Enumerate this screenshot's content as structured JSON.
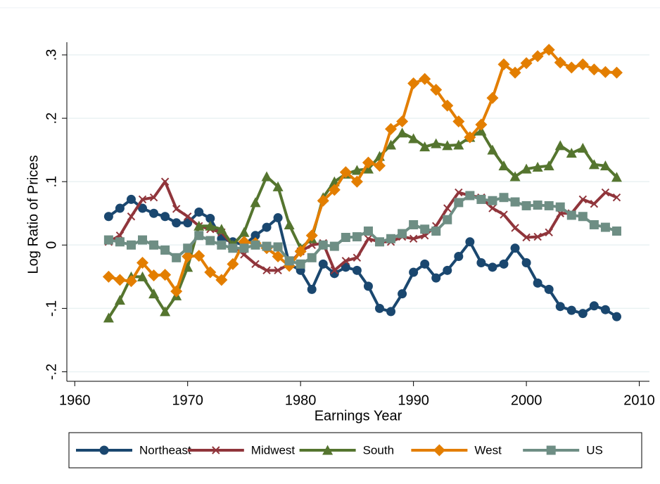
{
  "chart_data": {
    "type": "line",
    "xlabel": "Earnings Year",
    "ylabel": "Log Ratio of Prices",
    "x": [
      1963,
      1964,
      1965,
      1966,
      1967,
      1968,
      1969,
      1970,
      1971,
      1972,
      1973,
      1974,
      1975,
      1976,
      1977,
      1978,
      1979,
      1980,
      1981,
      1982,
      1983,
      1984,
      1985,
      1986,
      1987,
      1988,
      1989,
      1990,
      1991,
      1992,
      1993,
      1994,
      1995,
      1996,
      1997,
      1998,
      1999,
      2000,
      2001,
      2002,
      2003,
      2004,
      2005,
      2006,
      2007,
      2008
    ],
    "series": [
      {
        "name": "Northeast",
        "color": "#1a476f",
        "marker": "circle",
        "values": [
          0.045,
          0.058,
          0.072,
          0.058,
          0.05,
          0.045,
          0.035,
          0.035,
          0.052,
          0.042,
          0.01,
          0.005,
          0.0,
          0.015,
          0.028,
          0.043,
          -0.03,
          -0.04,
          -0.07,
          -0.03,
          -0.045,
          -0.035,
          -0.04,
          -0.065,
          -0.1,
          -0.105,
          -0.077,
          -0.043,
          -0.03,
          -0.052,
          -0.04,
          -0.018,
          0.005,
          -0.028,
          -0.035,
          -0.03,
          -0.005,
          -0.028,
          -0.06,
          -0.07,
          -0.097,
          -0.103,
          -0.108,
          -0.096,
          -0.102,
          -0.113
        ]
      },
      {
        "name": "Midwest",
        "color": "#90353b",
        "marker": "x",
        "values": [
          0.005,
          0.015,
          0.045,
          0.072,
          0.075,
          0.1,
          0.057,
          0.045,
          0.03,
          0.025,
          0.02,
          0.0,
          -0.015,
          -0.03,
          -0.04,
          -0.04,
          -0.03,
          -0.01,
          0.0,
          0.003,
          -0.04,
          -0.025,
          -0.02,
          0.01,
          0.005,
          0.005,
          0.013,
          0.01,
          0.015,
          0.03,
          0.058,
          0.083,
          0.078,
          0.075,
          0.058,
          0.048,
          0.027,
          0.012,
          0.013,
          0.02,
          0.05,
          0.05,
          0.072,
          0.065,
          0.083,
          0.075
        ]
      },
      {
        "name": "South",
        "color": "#55752f",
        "marker": "triangle",
        "values": [
          -0.115,
          -0.087,
          -0.05,
          -0.05,
          -0.077,
          -0.105,
          -0.08,
          -0.035,
          0.03,
          0.03,
          0.025,
          0.0,
          0.02,
          0.067,
          0.108,
          0.092,
          0.032,
          -0.005,
          0.01,
          0.075,
          0.1,
          0.112,
          0.118,
          0.12,
          0.14,
          0.158,
          0.177,
          0.168,
          0.155,
          0.16,
          0.157,
          0.158,
          0.17,
          0.18,
          0.15,
          0.125,
          0.108,
          0.12,
          0.123,
          0.125,
          0.157,
          0.145,
          0.153,
          0.127,
          0.125,
          0.107
        ]
      },
      {
        "name": "West",
        "color": "#e37e00",
        "marker": "diamond",
        "values": [
          -0.05,
          -0.055,
          -0.057,
          -0.028,
          -0.048,
          -0.047,
          -0.073,
          -0.018,
          -0.017,
          -0.043,
          -0.055,
          -0.03,
          0.005,
          0.003,
          -0.005,
          -0.018,
          -0.033,
          -0.01,
          0.015,
          0.07,
          0.087,
          0.115,
          0.1,
          0.13,
          0.125,
          0.183,
          0.195,
          0.255,
          0.262,
          0.245,
          0.22,
          0.195,
          0.17,
          0.19,
          0.232,
          0.285,
          0.272,
          0.287,
          0.298,
          0.308,
          0.288,
          0.28,
          0.285,
          0.277,
          0.273,
          0.272
        ]
      },
      {
        "name": "US",
        "color": "#6e8e84",
        "marker": "square",
        "values": [
          0.008,
          0.005,
          0.0,
          0.008,
          0.0,
          -0.008,
          -0.02,
          -0.005,
          0.015,
          0.007,
          0.0,
          -0.005,
          -0.005,
          0.0,
          -0.002,
          -0.003,
          -0.025,
          -0.03,
          -0.02,
          0.0,
          -0.002,
          0.012,
          0.013,
          0.022,
          0.005,
          0.01,
          0.018,
          0.032,
          0.025,
          0.022,
          0.04,
          0.067,
          0.078,
          0.072,
          0.07,
          0.075,
          0.068,
          0.062,
          0.063,
          0.062,
          0.06,
          0.047,
          0.045,
          0.032,
          0.028,
          0.022
        ]
      }
    ],
    "xlim": [
      1959.3,
      2010.9
    ],
    "xticks": [
      1960,
      1970,
      1980,
      1990,
      2000,
      2010
    ],
    "ylim": [
      -0.215,
      0.32
    ],
    "yticks": [
      {
        "value": -0.2,
        "label": "-.2"
      },
      {
        "value": -0.1,
        "label": "-.1"
      },
      {
        "value": 0,
        "label": "0"
      },
      {
        "value": 0.1,
        "label": ".1"
      },
      {
        "value": 0.2,
        "label": ".2"
      },
      {
        "value": 0.3,
        "label": ".3"
      }
    ],
    "grid": true,
    "legend": "bottom"
  }
}
